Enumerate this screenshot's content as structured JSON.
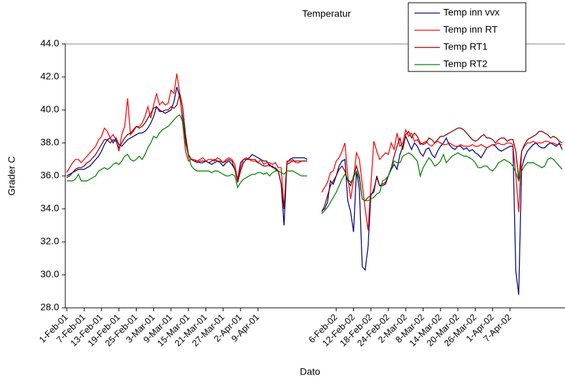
{
  "chart_data": {
    "type": "line",
    "title": "Temperatur",
    "x_label": "Dato",
    "y_label": "Grader C",
    "ylim": [
      28,
      44
    ],
    "yticks": [
      {
        "value": 28,
        "label": "28.0"
      },
      {
        "value": 30,
        "label": "30.0"
      },
      {
        "value": 32,
        "label": "32.0"
      },
      {
        "value": 34,
        "label": "34.0"
      },
      {
        "value": 36,
        "label": "36.0"
      },
      {
        "value": 38,
        "label": "38.0"
      },
      {
        "value": 40,
        "label": "40.0"
      },
      {
        "value": 42,
        "label": "42.0"
      },
      {
        "value": 44,
        "label": "44.0"
      }
    ],
    "grid": false,
    "legend": "top-right",
    "categories": [
      "1-Feb-01",
      null,
      null,
      null,
      null,
      null,
      "7-Feb-01",
      null,
      null,
      null,
      null,
      null,
      "13-Feb-01",
      null,
      null,
      null,
      null,
      null,
      "19-Feb-01",
      null,
      null,
      null,
      null,
      null,
      "25-Feb-01",
      null,
      null,
      null,
      null,
      null,
      "3-Mar-01",
      null,
      null,
      null,
      null,
      null,
      "9-Mar-01",
      null,
      null,
      null,
      null,
      null,
      "15-Mar-01",
      null,
      null,
      null,
      null,
      null,
      "21-Mar-01",
      null,
      null,
      null,
      null,
      null,
      "27-Mar-01",
      null,
      null,
      null,
      null,
      null,
      "2-Apr-01",
      null,
      null,
      null,
      null,
      null,
      "9-Apr-01",
      null,
      null,
      null,
      null,
      null,
      null,
      null,
      null,
      null,
      null,
      null,
      null,
      null,
      null,
      null,
      null,
      null,
      null,
      null,
      null,
      null,
      null,
      null,
      null,
      null,
      null,
      "6-Feb-02",
      null,
      null,
      null,
      null,
      null,
      "12-Feb-02",
      null,
      null,
      null,
      null,
      null,
      "18-Feb-02",
      null,
      null,
      null,
      null,
      null,
      "24-Feb-02",
      null,
      null,
      null,
      null,
      null,
      "2-Mar-02",
      null,
      null,
      null,
      null,
      null,
      "8-Mar-02",
      null,
      null,
      null,
      null,
      null,
      "14-Mar-02",
      null,
      null,
      null,
      null,
      null,
      "20-Mar-02",
      null,
      null,
      null,
      null,
      null,
      "26-Mar-02",
      null,
      null,
      null,
      null,
      null,
      "1-Apr-02",
      null,
      null,
      null,
      null,
      null,
      "7-Apr-02",
      null,
      null,
      null,
      null,
      null,
      null,
      null,
      null,
      null,
      null,
      null,
      null,
      null,
      null,
      null,
      null,
      null,
      null
    ],
    "series": [
      {
        "name": "Temp inn vvx",
        "color": "#000080",
        "values": [
          36.0,
          36.1,
          36.2,
          36.3,
          36.4,
          36.4,
          36.4,
          36.5,
          36.6,
          36.8,
          37.0,
          37.2,
          37.5,
          37.9,
          38.2,
          38.3,
          38.0,
          38.3,
          37.9,
          37.8,
          38.0,
          38.2,
          38.3,
          38.4,
          38.5,
          38.6,
          38.6,
          38.7,
          38.9,
          39.2,
          39.6,
          40.2,
          40.0,
          39.9,
          39.8,
          39.9,
          40.0,
          40.5,
          41.4,
          40.8,
          39.5,
          38.2,
          37.3,
          37.0,
          36.9,
          36.9,
          36.8,
          36.8,
          36.9,
          36.8,
          36.7,
          36.8,
          36.9,
          36.8,
          36.6,
          36.8,
          36.9,
          36.7,
          36.4,
          35.8,
          36.8,
          37.0,
          37.0,
          37.1,
          37.3,
          37.2,
          37.1,
          37.0,
          36.9,
          36.9,
          36.6,
          36.6,
          36.4,
          36.3,
          35.5,
          33.0,
          36.8,
          37.0,
          37.1,
          37.1,
          37.1,
          37.1,
          37.1,
          37.0,
          null,
          null,
          null,
          null,
          33.9,
          34.0,
          34.4,
          35.7,
          35.5,
          36.0,
          36.6,
          36.9,
          37.0,
          34.5,
          33.8,
          32.6,
          36.3,
          35.2,
          30.5,
          30.3,
          31.7,
          34.9,
          35.0,
          36.0,
          35.4,
          35.4,
          35.5,
          36.0,
          36.4,
          36.7,
          36.4,
          37.3,
          37.8,
          38.4,
          38.0,
          37.6,
          38.0,
          37.8,
          37.4,
          37.2,
          37.6,
          37.7,
          37.3,
          37.1,
          37.5,
          37.8,
          38.0,
          38.3,
          37.9,
          37.7,
          37.6,
          37.8,
          37.8,
          37.6,
          37.7,
          37.5,
          37.6,
          37.4,
          37.3,
          37.1,
          37.4,
          37.7,
          37.8,
          37.9,
          37.8,
          37.6,
          37.5,
          37.6,
          37.7,
          37.8,
          37.8,
          30.2,
          28.8,
          36.5,
          37.1,
          37.5,
          37.7,
          37.9,
          38.0,
          37.8,
          37.7,
          37.7,
          37.9,
          38.0,
          37.9,
          37.8,
          38.0,
          37.6
        ]
      },
      {
        "name": "Temp inn RT",
        "color": "#ff0000",
        "values": [
          36.2,
          36.5,
          36.8,
          37.0,
          37.0,
          36.8,
          37.0,
          37.2,
          37.4,
          37.6,
          37.8,
          38.2,
          38.4,
          38.9,
          38.7,
          38.3,
          38.5,
          38.2,
          37.5,
          38.5,
          39.0,
          40.7,
          38.5,
          38.7,
          39.0,
          39.0,
          39.2,
          39.6,
          40.2,
          39.5,
          40.3,
          41.0,
          40.3,
          40.5,
          40.3,
          40.4,
          41.2,
          41.0,
          42.2,
          41.0,
          39.2,
          37.5,
          36.9,
          37.0,
          37.0,
          36.9,
          37.0,
          37.1,
          36.9,
          37.0,
          37.0,
          36.9,
          37.1,
          37.0,
          36.8,
          37.0,
          37.1,
          37.0,
          36.7,
          35.7,
          36.5,
          37.0,
          37.1,
          37.0,
          36.9,
          36.9,
          36.8,
          37.0,
          36.7,
          36.8,
          36.8,
          36.7,
          36.8,
          36.5,
          36.5,
          34.0,
          36.9,
          36.9,
          37.0,
          36.8,
          36.8,
          36.9,
          36.9,
          36.9,
          null,
          null,
          null,
          null,
          35.0,
          35.3,
          35.6,
          36.2,
          36.3,
          36.9,
          37.1,
          37.5,
          38.0,
          36.0,
          34.6,
          35.8,
          37.4,
          37.0,
          35.5,
          34.0,
          32.7,
          35.5,
          38.1,
          37.5,
          37.0,
          37.2,
          37.4,
          37.3,
          38.0,
          37.6,
          38.6,
          37.8,
          38.0,
          38.8,
          38.4,
          38.6,
          38.1,
          38.2,
          37.9,
          38.0,
          38.1,
          37.9,
          37.8,
          38.0,
          38.1,
          38.0,
          37.9,
          37.9,
          38.0,
          37.9,
          37.8,
          37.8,
          37.9,
          37.8,
          37.8,
          37.8,
          37.9,
          37.8,
          37.8,
          37.9,
          37.8,
          37.7,
          37.8,
          37.9,
          37.9,
          38.0,
          37.9,
          37.9,
          38.0,
          38.0,
          37.9,
          36.0,
          33.8,
          37.5,
          37.8,
          38.0,
          38.0,
          38.1,
          38.0,
          38.0,
          38.0,
          38.1,
          38.1,
          38.0,
          38.0,
          37.9,
          37.9,
          37.9
        ]
      },
      {
        "name": "Temp RT1",
        "color": "#800000",
        "values": [
          35.9,
          36.0,
          36.2,
          36.4,
          36.5,
          36.5,
          36.6,
          36.8,
          36.9,
          37.1,
          37.3,
          37.6,
          37.9,
          38.2,
          38.2,
          38.0,
          38.2,
          38.1,
          37.7,
          38.0,
          38.3,
          38.5,
          38.6,
          38.8,
          39.0,
          38.9,
          39.0,
          39.2,
          39.5,
          39.8,
          40.1,
          40.2,
          39.9,
          39.9,
          40.0,
          40.0,
          40.2,
          40.1,
          40.3,
          41.0,
          40.2,
          38.5,
          37.3,
          37.0,
          36.9,
          36.8,
          36.9,
          36.9,
          36.9,
          36.8,
          36.9,
          37.0,
          36.9,
          36.9,
          36.8,
          36.9,
          37.0,
          36.9,
          36.4,
          35.6,
          36.3,
          36.8,
          37.0,
          37.0,
          37.0,
          37.0,
          36.8,
          36.7,
          36.6,
          36.6,
          36.7,
          36.5,
          36.5,
          36.3,
          35.5,
          34.0,
          36.7,
          36.8,
          36.9,
          36.9,
          36.9,
          36.9,
          36.9,
          36.9,
          null,
          null,
          null,
          null,
          33.8,
          34.2,
          34.8,
          35.4,
          35.7,
          36.0,
          36.4,
          36.6,
          36.3,
          35.7,
          35.4,
          36.0,
          36.6,
          36.0,
          34.6,
          34.5,
          34.7,
          34.8,
          35.2,
          35.9,
          35.4,
          35.5,
          35.6,
          36.0,
          36.5,
          37.2,
          37.8,
          38.3,
          37.6,
          38.5,
          38.7,
          38.3,
          38.6,
          38.4,
          38.0,
          37.9,
          38.0,
          38.3,
          38.2,
          38.0,
          38.2,
          38.4,
          38.4,
          38.5,
          38.6,
          38.7,
          38.8,
          38.9,
          38.9,
          38.8,
          38.6,
          38.4,
          38.2,
          38.1,
          38.2,
          38.4,
          38.5,
          38.3,
          38.3,
          38.2,
          38.0,
          38.2,
          38.3,
          38.3,
          38.1,
          38.2,
          38.2,
          37.5,
          35.8,
          37.5,
          37.9,
          38.2,
          38.3,
          38.4,
          38.5,
          38.7,
          38.7,
          38.6,
          38.5,
          38.3,
          38.4,
          38.3,
          38.1,
          38.0
        ]
      },
      {
        "name": "Temp RT2",
        "color": "#008000",
        "values": [
          35.7,
          35.7,
          35.7,
          35.8,
          36.1,
          35.7,
          35.7,
          35.7,
          35.8,
          35.9,
          36.0,
          36.3,
          36.4,
          36.5,
          36.4,
          36.5,
          36.7,
          36.8,
          36.7,
          36.9,
          37.2,
          37.3,
          37.0,
          36.9,
          37.0,
          37.2,
          37.0,
          37.3,
          37.7,
          38.0,
          38.4,
          38.3,
          38.6,
          38.8,
          38.9,
          39.0,
          39.2,
          39.4,
          39.6,
          39.7,
          39.3,
          38.0,
          37.2,
          36.6,
          36.4,
          36.3,
          36.3,
          36.3,
          36.3,
          36.3,
          36.2,
          36.3,
          36.3,
          36.2,
          36.1,
          36.0,
          36.0,
          36.1,
          36.0,
          35.3,
          35.6,
          35.8,
          35.9,
          36.0,
          36.1,
          36.1,
          36.2,
          36.2,
          36.1,
          36.2,
          36.0,
          36.2,
          36.3,
          36.3,
          36.2,
          36.1,
          36.3,
          36.3,
          36.3,
          36.2,
          36.1,
          36.0,
          36.0,
          36.0,
          null,
          null,
          null,
          null,
          33.7,
          33.9,
          34.1,
          34.4,
          34.7,
          35.0,
          35.4,
          35.8,
          36.1,
          35.8,
          35.6,
          35.9,
          36.3,
          35.8,
          34.6,
          34.5,
          34.5,
          34.6,
          34.7,
          34.9,
          35.0,
          35.7,
          35.8,
          36.0,
          36.5,
          36.9,
          36.8,
          36.8,
          37.2,
          37.3,
          37.4,
          37.3,
          37.1,
          36.9,
          36.0,
          36.5,
          36.8,
          37.1,
          36.9,
          36.6,
          36.7,
          36.9,
          37.3,
          36.8,
          37.0,
          37.2,
          37.3,
          37.4,
          37.3,
          37.2,
          37.2,
          37.1,
          37.0,
          36.8,
          36.5,
          36.5,
          36.6,
          36.6,
          36.4,
          36.3,
          36.5,
          36.8,
          36.9,
          37.0,
          36.9,
          36.8,
          36.6,
          36.2,
          35.7,
          36.3,
          36.6,
          36.8,
          36.8,
          36.8,
          36.7,
          36.6,
          36.5,
          36.6,
          37.0,
          37.1,
          37.0,
          36.8,
          36.6,
          36.4
        ]
      }
    ]
  }
}
